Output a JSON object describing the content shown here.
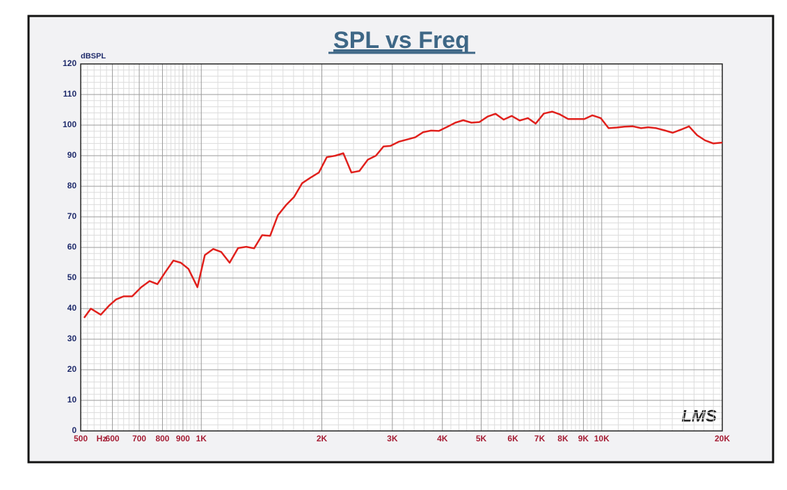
{
  "chart_data": {
    "type": "line",
    "title": "SPL vs Freq",
    "y_label": "dBSPL",
    "x_label": "Hz",
    "watermark": "LMS",
    "log_x": true,
    "grid": true,
    "xlim": [
      500,
      20000
    ],
    "xticks": [
      500,
      600,
      700,
      800,
      900,
      {
        "value": 1000,
        "label": "1K"
      },
      {
        "value": 2000,
        "label": "2K"
      },
      {
        "value": 3000,
        "label": "3K"
      },
      {
        "value": 4000,
        "label": "4K"
      },
      {
        "value": 5000,
        "label": "5K"
      },
      {
        "value": 6000,
        "label": "6K"
      },
      {
        "value": 7000,
        "label": "7K"
      },
      {
        "value": 8000,
        "label": "8K"
      },
      {
        "value": 9000,
        "label": "9K"
      },
      {
        "value": 10000,
        "label": "10K"
      },
      {
        "value": 20000,
        "label": "20K"
      }
    ],
    "ylim": [
      0,
      120
    ],
    "yticks": [
      0,
      10,
      20,
      30,
      40,
      50,
      60,
      70,
      80,
      90,
      100,
      110,
      120
    ],
    "series": [
      {
        "color": "#e0201c",
        "x": [
          510,
          530,
          561,
          589,
          613,
          640,
          672,
          708,
          743,
          777,
          814,
          852,
          889,
          929,
          978,
          1021,
          1071,
          1122,
          1177,
          1236,
          1295,
          1355,
          1419,
          1486,
          1553,
          1627,
          1705,
          1786,
          1873,
          1967,
          2058,
          2162,
          2263,
          2371,
          2482,
          2606,
          2729,
          2851,
          2969,
          3117,
          3267,
          3422,
          3584,
          3749,
          3920,
          4110,
          4310,
          4510,
          4730,
          4950,
          5190,
          5430,
          5690,
          5960,
          6240,
          6540,
          6840,
          7170,
          7520,
          7860,
          8240,
          8640,
          9050,
          9480,
          9940,
          10400,
          10900,
          11400,
          11970,
          12540,
          13060,
          13680,
          14340,
          15040,
          15760,
          16520,
          17300,
          18120,
          19000,
          20000
        ],
        "values": [
          37,
          40,
          38,
          41,
          43,
          44,
          44,
          47,
          49,
          48,
          52,
          55.7,
          55,
          53,
          47,
          57.5,
          59.5,
          58.5,
          55,
          59.8,
          60.2,
          59.7,
          64,
          63.8,
          70.5,
          73.8,
          76.5,
          81,
          82.8,
          84.5,
          89.5,
          90,
          90.8,
          84.5,
          85,
          88.7,
          90,
          93,
          93.2,
          94.6,
          95.3,
          96,
          97.7,
          98.2,
          98.1,
          99.4,
          100.8,
          101.6,
          100.8,
          101,
          102.8,
          103.7,
          101.8,
          103,
          101.5,
          102.3,
          100.5,
          103.8,
          104.4,
          103.5,
          102,
          102,
          102,
          103.2,
          102.3,
          99,
          99.2,
          99.5,
          99.6,
          99,
          99.3,
          99,
          98.3,
          97.5,
          98.5,
          99.6,
          96.7,
          95,
          94,
          94.3
        ]
      }
    ]
  }
}
